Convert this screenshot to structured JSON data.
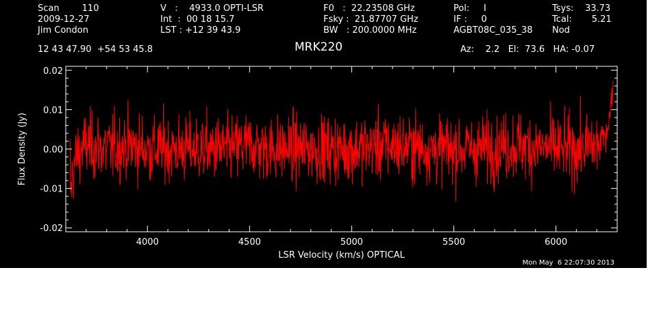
{
  "header": {
    "scan": "Scan        110",
    "date": "2009-12-27",
    "observer": "Jim Condon",
    "coords": "12 43 47.90  +54 53 45.8",
    "velocity": "V   :    4933.0 OPTI-LSR",
    "integration": "Int  :  00 18 15.7",
    "lst": "LST : +12 39 43.9",
    "f0": "F0   :  22.23508 GHz",
    "fsky": "Fsky :  21.87707 GHz",
    "bw": "BW   : 200.0000 MHz",
    "pol": "Pol:     I",
    "if": "IF :     0",
    "project": "AGBT08C_035_38",
    "tsys": "Tsys:    33.73",
    "tcal": "Tcal:       5.21",
    "proc": "Nod",
    "az_el_ha": "Az:    2.2   El:  73.6   HA: -0.07",
    "source": "MRK220"
  },
  "footer": {
    "timestamp": "Mon May  6 22:07:30 2013"
  },
  "chart_data": {
    "type": "line",
    "title": "MRK220",
    "xlabel": "LSR Velocity (km/s) OPTICAL",
    "ylabel": "Flux Density (Jy)",
    "xlim": [
      3600,
      6300
    ],
    "ylim": [
      -0.021,
      0.021
    ],
    "xticks": [
      4000,
      4500,
      5000,
      5500,
      6000
    ],
    "xtick_labels": [
      "4000",
      "4500",
      "5000",
      "5500",
      "6000"
    ],
    "yticks": [
      -0.02,
      -0.01,
      0.0,
      0.01,
      0.02
    ],
    "ytick_labels": [
      "-0.02",
      "-0.01",
      "0.00",
      "0.01",
      "0.02"
    ],
    "series": [
      {
        "color": "#ff0000",
        "x": [
          3620,
          3625,
          3630,
          3640,
          3660,
          3700,
          3800,
          3900,
          4000,
          4200,
          4400,
          4500,
          4600,
          4800,
          5000,
          5200,
          5400,
          5500,
          5600,
          5800,
          6000,
          6100,
          6200,
          6230,
          6250,
          6265,
          6275,
          6280
        ],
        "values": [
          -0.003,
          -0.012,
          -0.008,
          -0.004,
          -0.001,
          0.001,
          0.0,
          0.001,
          0.0,
          0.0,
          0.0,
          0.001,
          0.0,
          0.0,
          0.0,
          0.001,
          0.0,
          0.0,
          0.0,
          0.001,
          0.0,
          0.0,
          0.001,
          0.002,
          0.005,
          0.009,
          0.014,
          0.017
        ],
        "noise_rms": 0.0042
      }
    ],
    "grid": false,
    "background": "#000000",
    "axis_color": "#ffffff"
  }
}
